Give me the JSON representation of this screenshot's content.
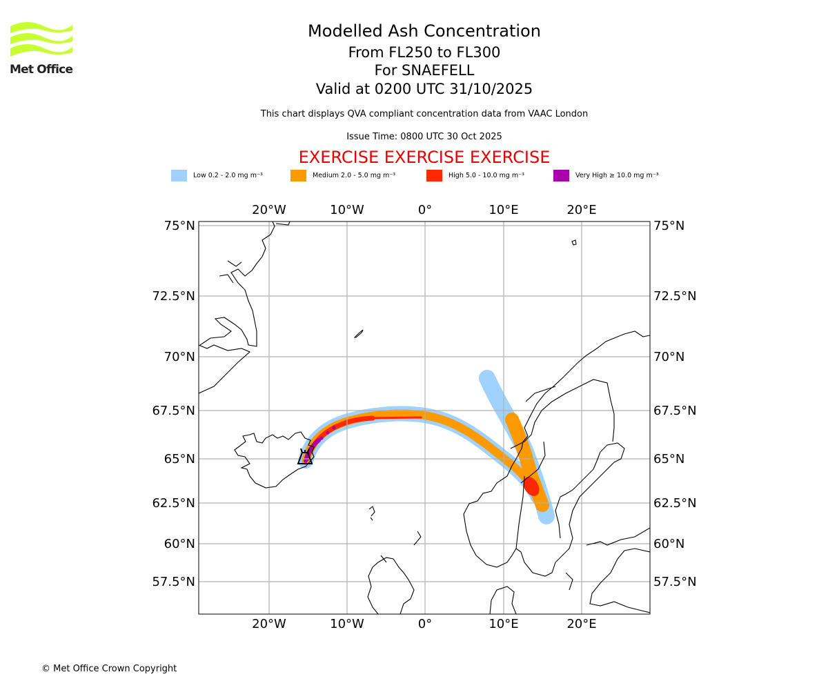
{
  "logo": {
    "text": "Met Office",
    "color": "#c8ff32"
  },
  "title": {
    "main": "Modelled Ash Concentration",
    "levels": "From FL250 to FL300",
    "volcano": "For SNAEFELL",
    "valid": "Valid at 0200 UTC 31/10/2025",
    "note": "This chart displays QVA compliant concentration data from VAAC London",
    "issue": "Issue Time: 0800 UTC 30 Oct 2025",
    "exercise": "EXERCISE EXERCISE EXERCISE"
  },
  "legend": [
    {
      "label": "Low 0.2 - 2.0 mg m⁻³",
      "color": "#a0d2ff"
    },
    {
      "label": "Medium 2.0 - 5.0 mg m⁻³",
      "color": "#ff9900"
    },
    {
      "label": "High 5.0 - 10.0 mg m⁻³",
      "color": "#ff2800"
    },
    {
      "label": "Very High ≥ 10.0 mg m⁻³",
      "color": "#aa00aa"
    }
  ],
  "map": {
    "lon_ticks": [
      "20°W",
      "10°W",
      "0°",
      "10°E",
      "20°E"
    ],
    "lat_ticks": [
      "75°N",
      "72.5°N",
      "70°N",
      "67.5°N",
      "65°N",
      "62.5°N",
      "60°N",
      "57.5°N"
    ],
    "grid": true,
    "volcano_marker": "volcano-icon"
  },
  "footer": {
    "copyright": "© Met Office Crown Copyright"
  }
}
